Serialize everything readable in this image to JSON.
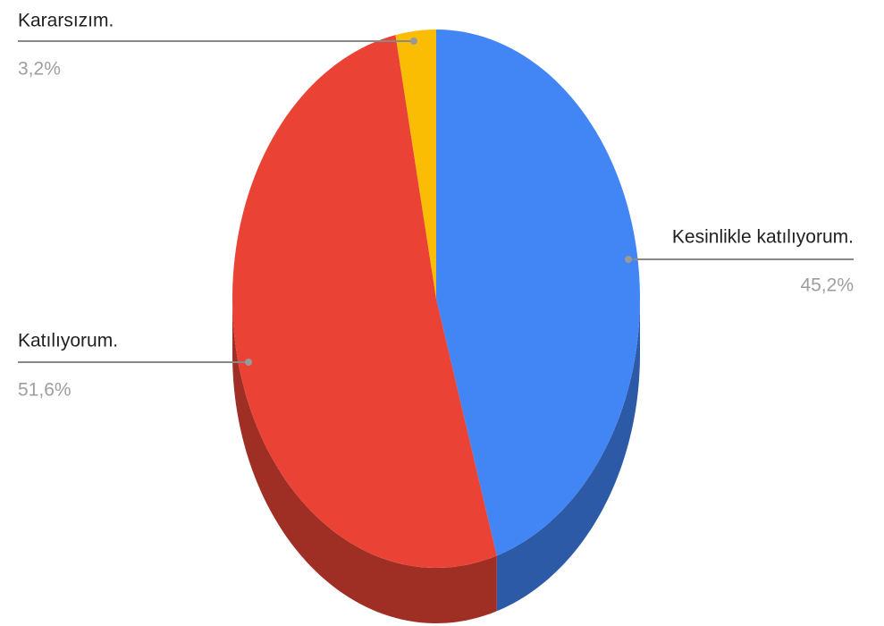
{
  "chart_data": {
    "type": "pie",
    "categories": [
      "Kesinlikle katılıyorum.",
      "Katılıyorum.",
      "Kararsızım."
    ],
    "values": [
      45.2,
      51.6,
      3.2
    ],
    "value_labels": [
      "45,2%",
      "51,6%",
      "3,2%"
    ],
    "colors": [
      "#4285f4",
      "#ea4335",
      "#fbbc04"
    ]
  }
}
